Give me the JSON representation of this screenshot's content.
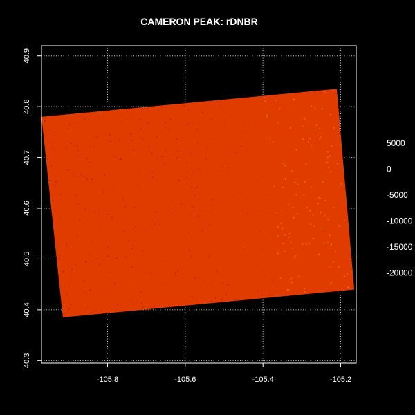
{
  "chart_data": {
    "type": "heatmap",
    "title": "CAMERON PEAK: rDNBR",
    "xlabel": "",
    "ylabel": "",
    "xlim": [
      -105.97,
      -105.16
    ],
    "ylim": [
      40.295,
      40.92
    ],
    "grid": true,
    "x_ticks": [
      {
        "value": -105.8,
        "label": "-105.8"
      },
      {
        "value": -105.6,
        "label": "-105.6"
      },
      {
        "value": -105.4,
        "label": "-105.4"
      },
      {
        "value": -105.2,
        "label": "-105.2"
      }
    ],
    "y_ticks": [
      {
        "value": 40.3,
        "label": "40.3"
      },
      {
        "value": 40.4,
        "label": "40.4"
      },
      {
        "value": 40.5,
        "label": "40.5"
      },
      {
        "value": 40.6,
        "label": "40.6"
      },
      {
        "value": 40.7,
        "label": "40.7"
      },
      {
        "value": 40.8,
        "label": "40.8"
      },
      {
        "value": 40.9,
        "label": "40.9"
      }
    ],
    "raster_corners": [
      {
        "x": -105.97,
        "y": 40.78
      },
      {
        "x": -105.21,
        "y": 40.835
      },
      {
        "x": -105.165,
        "y": 40.44
      },
      {
        "x": -105.915,
        "y": 40.385
      }
    ],
    "fill_color": "#e03c00",
    "legend": {
      "position": "right",
      "labels": [
        "5000",
        "0",
        "-5000",
        "-10000",
        "-15000",
        "-20000"
      ],
      "values": [
        5000,
        0,
        -5000,
        -10000,
        -15000,
        -20000
      ]
    }
  }
}
